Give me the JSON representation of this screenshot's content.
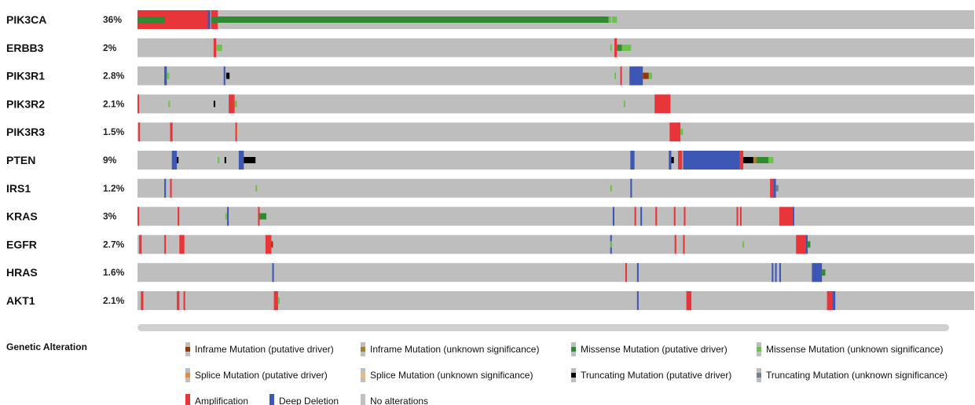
{
  "chart_data": {
    "type": "oncoprint",
    "genes": [
      {
        "name": "PIK3CA",
        "freq": "36%",
        "alterations": [
          {
            "x": 0.0,
            "w": 0.085,
            "type": "amplification"
          },
          {
            "x": 0.0,
            "w": 0.033,
            "type": "missense_driver"
          },
          {
            "x": 0.084,
            "w": 0.003,
            "type": "deep_deletion"
          },
          {
            "x": 0.088,
            "w": 0.008,
            "type": "amplification"
          },
          {
            "x": 0.088,
            "w": 0.475,
            "type": "missense_driver"
          },
          {
            "x": 0.563,
            "w": 0.003,
            "type": "missense_unknown"
          },
          {
            "x": 0.567,
            "w": 0.006,
            "type": "missense_unknown"
          }
        ]
      },
      {
        "name": "ERBB3",
        "freq": "2%",
        "alterations": [
          {
            "x": 0.091,
            "w": 0.003,
            "type": "amplification"
          },
          {
            "x": 0.094,
            "w": 0.007,
            "type": "missense_unknown"
          },
          {
            "x": 0.565,
            "w": 0.002,
            "type": "missense_unknown"
          },
          {
            "x": 0.57,
            "w": 0.003,
            "type": "amplification"
          },
          {
            "x": 0.573,
            "w": 0.006,
            "type": "missense_driver"
          },
          {
            "x": 0.579,
            "w": 0.011,
            "type": "missense_unknown"
          }
        ]
      },
      {
        "name": "PIK3R1",
        "freq": "2.8%",
        "alterations": [
          {
            "x": 0.032,
            "w": 0.003,
            "type": "deep_deletion"
          },
          {
            "x": 0.035,
            "w": 0.003,
            "type": "missense_unknown"
          },
          {
            "x": 0.103,
            "w": 0.002,
            "type": "deep_deletion"
          },
          {
            "x": 0.106,
            "w": 0.004,
            "type": "truncating_driver"
          },
          {
            "x": 0.57,
            "w": 0.002,
            "type": "missense_unknown"
          },
          {
            "x": 0.577,
            "w": 0.002,
            "type": "amplification"
          },
          {
            "x": 0.588,
            "w": 0.016,
            "type": "deep_deletion"
          },
          {
            "x": 0.604,
            "w": 0.007,
            "type": "inframe_driver"
          },
          {
            "x": 0.611,
            "w": 0.004,
            "type": "missense_unknown"
          }
        ]
      },
      {
        "name": "PIK3R2",
        "freq": "2.1%",
        "alterations": [
          {
            "x": 0.0,
            "w": 0.002,
            "type": "amplification"
          },
          {
            "x": 0.037,
            "w": 0.002,
            "type": "missense_unknown"
          },
          {
            "x": 0.091,
            "w": 0.002,
            "type": "truncating_driver"
          },
          {
            "x": 0.109,
            "w": 0.007,
            "type": "amplification"
          },
          {
            "x": 0.116,
            "w": 0.003,
            "type": "missense_unknown"
          },
          {
            "x": 0.581,
            "w": 0.002,
            "type": "missense_unknown"
          },
          {
            "x": 0.618,
            "w": 0.019,
            "type": "amplification"
          }
        ]
      },
      {
        "name": "PIK3R3",
        "freq": "1.5%",
        "alterations": [
          {
            "x": 0.001,
            "w": 0.002,
            "type": "amplification"
          },
          {
            "x": 0.039,
            "w": 0.003,
            "type": "amplification"
          },
          {
            "x": 0.117,
            "w": 0.002,
            "type": "amplification"
          },
          {
            "x": 0.119,
            "w": 0.002,
            "type": "splice_unknown"
          },
          {
            "x": 0.636,
            "w": 0.013,
            "type": "amplification"
          },
          {
            "x": 0.649,
            "w": 0.003,
            "type": "missense_unknown"
          }
        ]
      },
      {
        "name": "PTEN",
        "freq": "9%",
        "alterations": [
          {
            "x": 0.041,
            "w": 0.006,
            "type": "deep_deletion"
          },
          {
            "x": 0.047,
            "w": 0.002,
            "type": "truncating_driver"
          },
          {
            "x": 0.096,
            "w": 0.002,
            "type": "missense_unknown"
          },
          {
            "x": 0.104,
            "w": 0.002,
            "type": "truncating_driver"
          },
          {
            "x": 0.121,
            "w": 0.006,
            "type": "deep_deletion"
          },
          {
            "x": 0.127,
            "w": 0.014,
            "type": "truncating_driver"
          },
          {
            "x": 0.589,
            "w": 0.005,
            "type": "deep_deletion"
          },
          {
            "x": 0.635,
            "w": 0.003,
            "type": "deep_deletion"
          },
          {
            "x": 0.638,
            "w": 0.003,
            "type": "truncating_driver"
          },
          {
            "x": 0.646,
            "w": 0.005,
            "type": "amplification"
          },
          {
            "x": 0.652,
            "w": 0.068,
            "type": "deep_deletion"
          },
          {
            "x": 0.72,
            "w": 0.004,
            "type": "amplification"
          },
          {
            "x": 0.724,
            "w": 0.012,
            "type": "truncating_driver"
          },
          {
            "x": 0.736,
            "w": 0.004,
            "type": "inframe_unknown"
          },
          {
            "x": 0.74,
            "w": 0.014,
            "type": "missense_driver"
          },
          {
            "x": 0.754,
            "w": 0.006,
            "type": "missense_unknown"
          }
        ]
      },
      {
        "name": "IRS1",
        "freq": "1.2%",
        "alterations": [
          {
            "x": 0.032,
            "w": 0.002,
            "type": "deep_deletion"
          },
          {
            "x": 0.039,
            "w": 0.002,
            "type": "amplification"
          },
          {
            "x": 0.141,
            "w": 0.002,
            "type": "missense_unknown"
          },
          {
            "x": 0.565,
            "w": 0.002,
            "type": "missense_unknown"
          },
          {
            "x": 0.589,
            "w": 0.002,
            "type": "deep_deletion"
          },
          {
            "x": 0.756,
            "w": 0.004,
            "type": "amplification"
          },
          {
            "x": 0.76,
            "w": 0.003,
            "type": "deep_deletion"
          },
          {
            "x": 0.763,
            "w": 0.003,
            "type": "truncating_unknown"
          }
        ]
      },
      {
        "name": "KRAS",
        "freq": "3%",
        "alterations": [
          {
            "x": 0.0,
            "w": 0.002,
            "type": "amplification"
          },
          {
            "x": 0.048,
            "w": 0.002,
            "type": "amplification"
          },
          {
            "x": 0.105,
            "w": 0.002,
            "type": "missense_unknown"
          },
          {
            "x": 0.107,
            "w": 0.002,
            "type": "deep_deletion"
          },
          {
            "x": 0.144,
            "w": 0.002,
            "type": "amplification"
          },
          {
            "x": 0.146,
            "w": 0.008,
            "type": "missense_driver"
          },
          {
            "x": 0.568,
            "w": 0.002,
            "type": "deep_deletion"
          },
          {
            "x": 0.594,
            "w": 0.002,
            "type": "amplification"
          },
          {
            "x": 0.601,
            "w": 0.002,
            "type": "deep_deletion"
          },
          {
            "x": 0.619,
            "w": 0.002,
            "type": "amplification"
          },
          {
            "x": 0.641,
            "w": 0.002,
            "type": "amplification"
          },
          {
            "x": 0.653,
            "w": 0.002,
            "type": "amplification"
          },
          {
            "x": 0.716,
            "w": 0.002,
            "type": "amplification"
          },
          {
            "x": 0.72,
            "w": 0.002,
            "type": "amplification"
          },
          {
            "x": 0.767,
            "w": 0.016,
            "type": "amplification"
          },
          {
            "x": 0.783,
            "w": 0.002,
            "type": "deep_deletion"
          }
        ]
      },
      {
        "name": "EGFR",
        "freq": "2.7%",
        "alterations": [
          {
            "x": 0.002,
            "w": 0.003,
            "type": "amplification"
          },
          {
            "x": 0.032,
            "w": 0.002,
            "type": "amplification"
          },
          {
            "x": 0.05,
            "w": 0.006,
            "type": "amplification"
          },
          {
            "x": 0.153,
            "w": 0.007,
            "type": "amplification"
          },
          {
            "x": 0.16,
            "w": 0.002,
            "type": "inframe_driver"
          },
          {
            "x": 0.565,
            "w": 0.002,
            "type": "deep_deletion"
          },
          {
            "x": 0.565,
            "w": 0.002,
            "type": "missense_unknown"
          },
          {
            "x": 0.642,
            "w": 0.002,
            "type": "amplification"
          },
          {
            "x": 0.652,
            "w": 0.002,
            "type": "amplification"
          },
          {
            "x": 0.723,
            "w": 0.002,
            "type": "missense_unknown"
          },
          {
            "x": 0.787,
            "w": 0.012,
            "type": "amplification"
          },
          {
            "x": 0.799,
            "w": 0.002,
            "type": "deep_deletion"
          },
          {
            "x": 0.801,
            "w": 0.003,
            "type": "missense_driver"
          }
        ]
      },
      {
        "name": "HRAS",
        "freq": "1.6%",
        "alterations": [
          {
            "x": 0.161,
            "w": 0.002,
            "type": "deep_deletion"
          },
          {
            "x": 0.583,
            "w": 0.002,
            "type": "amplification"
          },
          {
            "x": 0.597,
            "w": 0.002,
            "type": "deep_deletion"
          },
          {
            "x": 0.758,
            "w": 0.002,
            "type": "deep_deletion"
          },
          {
            "x": 0.762,
            "w": 0.002,
            "type": "deep_deletion"
          },
          {
            "x": 0.767,
            "w": 0.002,
            "type": "deep_deletion"
          },
          {
            "x": 0.806,
            "w": 0.012,
            "type": "deep_deletion"
          },
          {
            "x": 0.818,
            "w": 0.004,
            "type": "missense_driver"
          }
        ]
      },
      {
        "name": "AKT1",
        "freq": "2.1%",
        "alterations": [
          {
            "x": 0.004,
            "w": 0.003,
            "type": "amplification"
          },
          {
            "x": 0.047,
            "w": 0.003,
            "type": "amplification"
          },
          {
            "x": 0.055,
            "w": 0.002,
            "type": "amplification"
          },
          {
            "x": 0.163,
            "w": 0.005,
            "type": "amplification"
          },
          {
            "x": 0.168,
            "w": 0.002,
            "type": "missense_unknown"
          },
          {
            "x": 0.597,
            "w": 0.002,
            "type": "deep_deletion"
          },
          {
            "x": 0.656,
            "w": 0.006,
            "type": "amplification"
          },
          {
            "x": 0.824,
            "w": 0.007,
            "type": "amplification"
          },
          {
            "x": 0.831,
            "w": 0.003,
            "type": "deep_deletion"
          }
        ]
      }
    ]
  },
  "legend": {
    "title": "Genetic Alteration",
    "items": [
      {
        "key": "inframe_driver",
        "label": "Inframe Mutation (putative driver)",
        "color": "#993404",
        "kind": "small"
      },
      {
        "key": "inframe_unknown",
        "label": "Inframe Mutation (unknown significance)",
        "color": "#a68028",
        "kind": "small"
      },
      {
        "key": "missense_driver",
        "label": "Missense Mutation (putative driver)",
        "color": "#2f8a32",
        "kind": "small"
      },
      {
        "key": "missense_unknown",
        "label": "Missense Mutation (unknown significance)",
        "color": "#6cc24a",
        "kind": "small"
      },
      {
        "key": "splice_driver",
        "label": "Splice Mutation (putative driver)",
        "color": "#e58a41",
        "kind": "small"
      },
      {
        "key": "splice_unknown",
        "label": "Splice Mutation (unknown significance)",
        "color": "#f0b87b",
        "kind": "small"
      },
      {
        "key": "truncating_driver",
        "label": "Truncating Mutation (putative driver)",
        "color": "#000000",
        "kind": "small"
      },
      {
        "key": "truncating_unknown",
        "label": "Truncating Mutation (unknown significance)",
        "color": "#708090",
        "kind": "small"
      },
      {
        "key": "amplification",
        "label": "Amplification",
        "color": "#e8353a",
        "kind": "full"
      },
      {
        "key": "deep_deletion",
        "label": "Deep Deletion",
        "color": "#3c58b4",
        "kind": "full"
      },
      {
        "key": "no_alterations",
        "label": "No alterations",
        "color": "#c0c0c0",
        "kind": "full"
      }
    ]
  },
  "colors": {
    "background_track": "#bebebe",
    "scrollbar": "#d0d0d0"
  }
}
